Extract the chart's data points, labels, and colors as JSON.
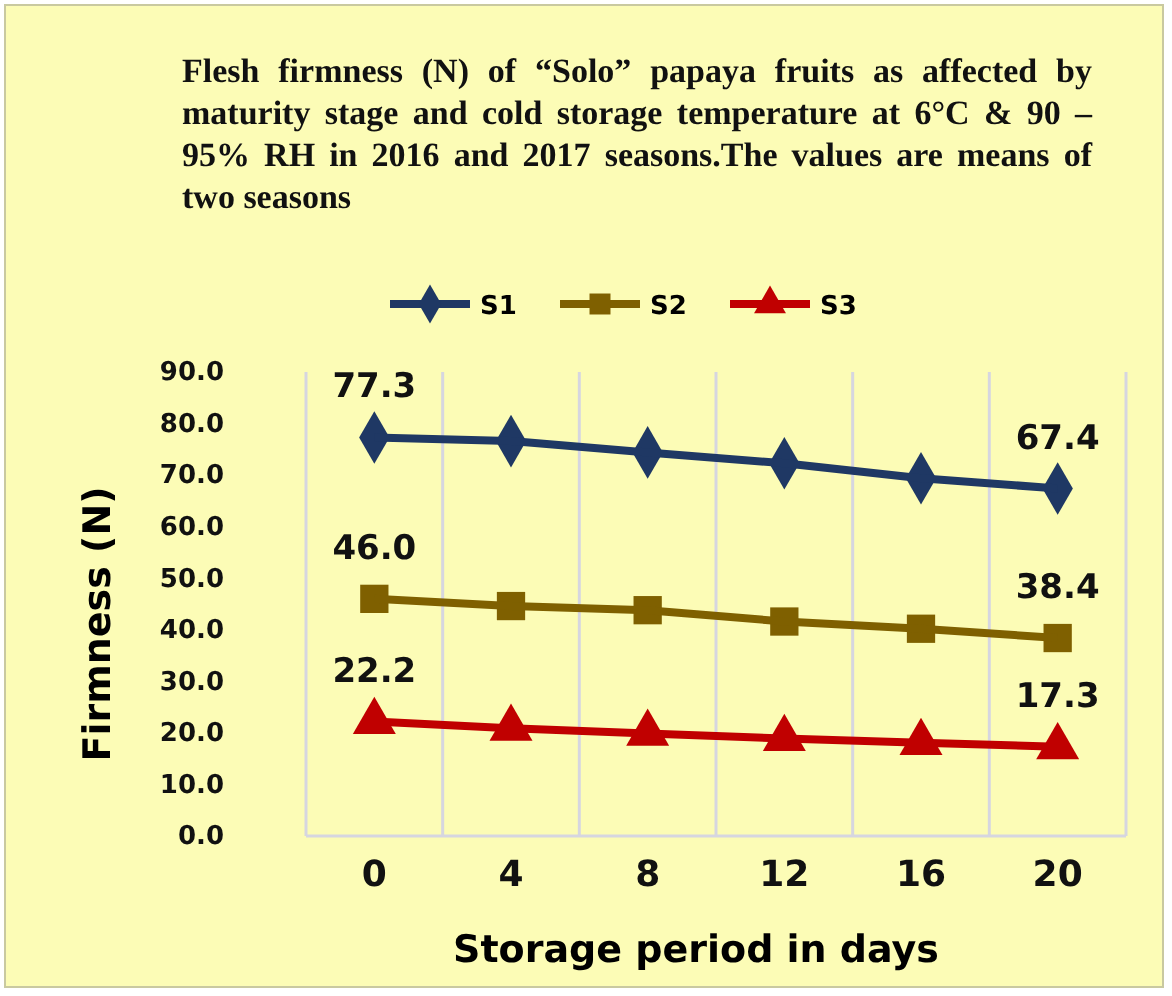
{
  "chart_data": {
    "type": "line",
    "title": "Flesh firmness (N) of “Solo” papaya fruits as affected by maturity stage and cold storage temperature at 6°C & 90 – 95% RH  in 2016 and 2017 seasons.The values are means of two seasons",
    "xlabel": "Storage period in days",
    "ylabel": "Firmness (N)",
    "categories": [
      "0",
      "4",
      "8",
      "12",
      "16",
      "20"
    ],
    "series": [
      {
        "name": "S1",
        "color": "#1f3864",
        "marker": "diamond",
        "values": [
          77.3,
          76.6,
          74.4,
          72.3,
          69.4,
          67.4
        ],
        "value_labels": [
          "77.3",
          null,
          null,
          null,
          null,
          "67.4"
        ]
      },
      {
        "name": "S2",
        "color": "#7f6000",
        "marker": "square",
        "values": [
          46.0,
          44.6,
          43.8,
          41.6,
          40.2,
          38.4
        ],
        "value_labels": [
          "46.0",
          null,
          null,
          null,
          null,
          "38.4"
        ]
      },
      {
        "name": "S3",
        "color": "#c00000",
        "marker": "triangle",
        "values": [
          22.2,
          20.9,
          19.9,
          18.9,
          18.1,
          17.3
        ],
        "value_labels": [
          "22.2",
          null,
          null,
          null,
          null,
          "17.3"
        ]
      }
    ],
    "ylim": [
      0,
      90
    ],
    "yticks": [
      {
        "value": 0,
        "label": "0.0"
      },
      {
        "value": 10,
        "label": "10.0"
      },
      {
        "value": 20,
        "label": "20.0"
      },
      {
        "value": 30,
        "label": "30.0"
      },
      {
        "value": 40,
        "label": "40.0"
      },
      {
        "value": 50,
        "label": "50.0"
      },
      {
        "value": 60,
        "label": "60.0"
      },
      {
        "value": 70,
        "label": "70.0"
      },
      {
        "value": 80,
        "label": "80.0"
      },
      {
        "value": 90,
        "label": "90.0"
      }
    ],
    "grid": "x",
    "legend": "top"
  }
}
